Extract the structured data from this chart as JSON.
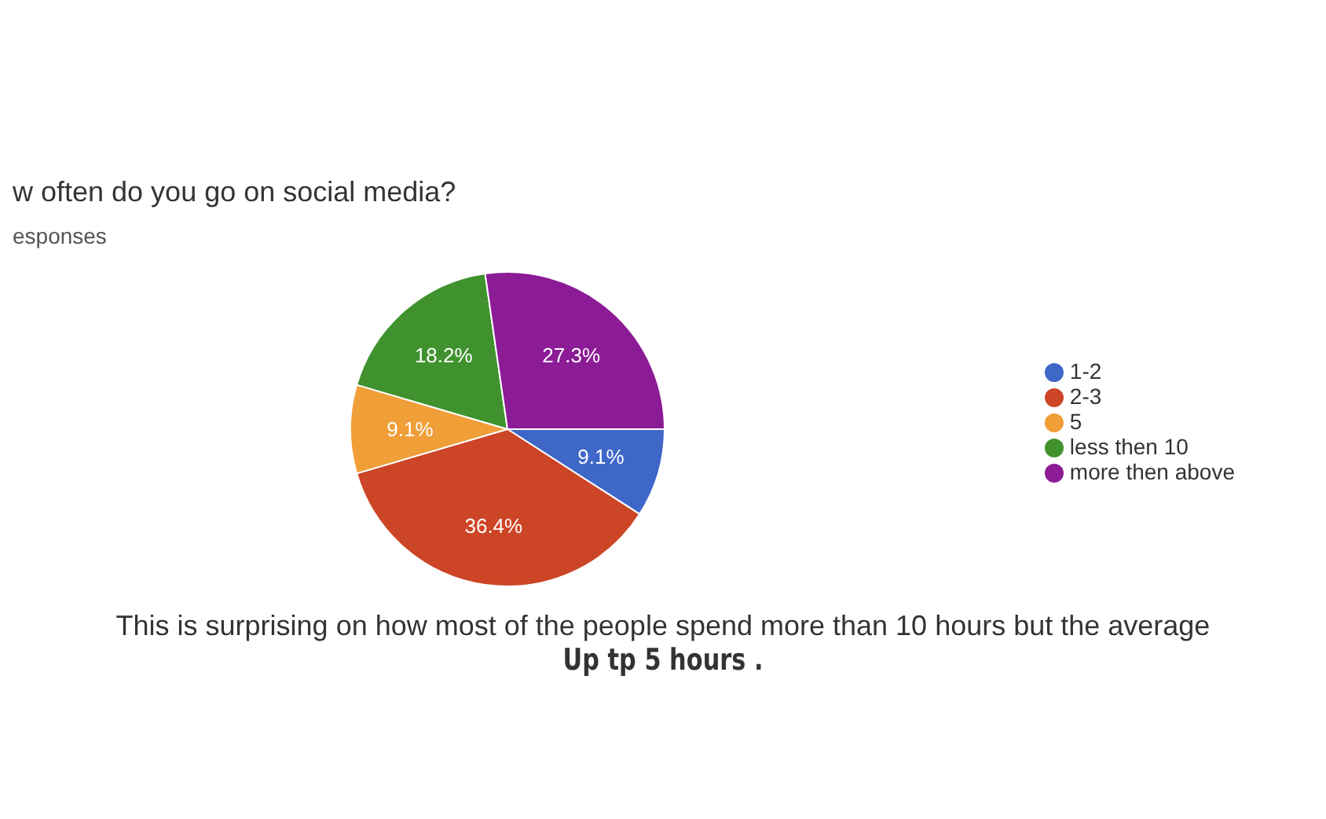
{
  "chart_data": {
    "type": "pie",
    "title": "w often do you go on social media?",
    "subtitle": "esponses",
    "categories": [
      "1-2",
      "2-3",
      "5",
      "less then 10",
      "more then above"
    ],
    "values": [
      9.1,
      36.4,
      9.1,
      18.2,
      27.3
    ],
    "colors": [
      "#3e67c8",
      "#cc4526",
      "#f09e38",
      "#40922f",
      "#8c1b96"
    ],
    "value_labels": [
      "9.1%",
      "36.4%",
      "9.1%",
      "18.2%",
      "27.3%"
    ],
    "legend": "right",
    "annotations": [
      "This is surprising on how most of the people spend more than 10 hours but the average",
      "Up tp 5 hours ."
    ]
  }
}
